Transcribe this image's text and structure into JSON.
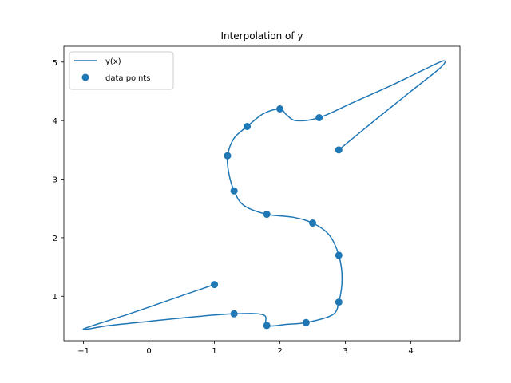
{
  "chart_data": {
    "type": "line",
    "title": "Interpolation of y",
    "xlabel": "",
    "ylabel": "",
    "xlim": [
      -1.3,
      4.75
    ],
    "ylim": [
      0.24,
      5.27
    ],
    "xticks": [
      -1,
      0,
      1,
      2,
      3,
      4
    ],
    "yticks": [
      1,
      2,
      3,
      4,
      5
    ],
    "grid": false,
    "legend_position": "upper-left",
    "color": "#1f77b4",
    "series": [
      {
        "name": "y(x)",
        "kind": "line",
        "points": [
          [
            1.0,
            1.2
          ],
          [
            0.4,
            0.97
          ],
          [
            -0.3,
            0.7
          ],
          [
            -1.0,
            0.44
          ],
          [
            -0.6,
            0.5
          ],
          [
            0.0,
            0.57
          ],
          [
            0.6,
            0.64
          ],
          [
            1.3,
            0.7
          ],
          [
            1.75,
            0.68
          ],
          [
            1.8,
            0.5
          ],
          [
            2.1,
            0.52
          ],
          [
            2.4,
            0.55
          ],
          [
            2.8,
            0.68
          ],
          [
            2.9,
            0.9
          ],
          [
            2.95,
            1.3
          ],
          [
            2.9,
            1.7
          ],
          [
            2.75,
            2.05
          ],
          [
            2.5,
            2.25
          ],
          [
            2.2,
            2.35
          ],
          [
            1.8,
            2.4
          ],
          [
            1.45,
            2.55
          ],
          [
            1.3,
            2.8
          ],
          [
            1.22,
            3.1
          ],
          [
            1.2,
            3.4
          ],
          [
            1.3,
            3.7
          ],
          [
            1.5,
            3.9
          ],
          [
            1.75,
            4.12
          ],
          [
            2.0,
            4.2
          ],
          [
            2.1,
            4.1
          ],
          [
            2.25,
            4.0
          ],
          [
            2.6,
            4.05
          ],
          [
            3.1,
            4.3
          ],
          [
            3.7,
            4.6
          ],
          [
            4.2,
            4.87
          ],
          [
            4.5,
            5.02
          ],
          [
            4.45,
            4.9
          ],
          [
            4.0,
            4.5
          ],
          [
            3.5,
            4.05
          ],
          [
            2.9,
            3.5
          ]
        ]
      },
      {
        "name": "data points",
        "kind": "scatter",
        "points": [
          [
            1.0,
            1.2
          ],
          [
            1.3,
            0.7
          ],
          [
            1.8,
            0.5
          ],
          [
            2.4,
            0.55
          ],
          [
            2.9,
            0.9
          ],
          [
            2.9,
            1.7
          ],
          [
            2.5,
            2.25
          ],
          [
            1.8,
            2.4
          ],
          [
            1.3,
            2.8
          ],
          [
            1.2,
            3.4
          ],
          [
            1.5,
            3.9
          ],
          [
            2.0,
            4.2
          ],
          [
            2.6,
            4.05
          ],
          [
            2.9,
            3.5
          ]
        ]
      }
    ]
  }
}
